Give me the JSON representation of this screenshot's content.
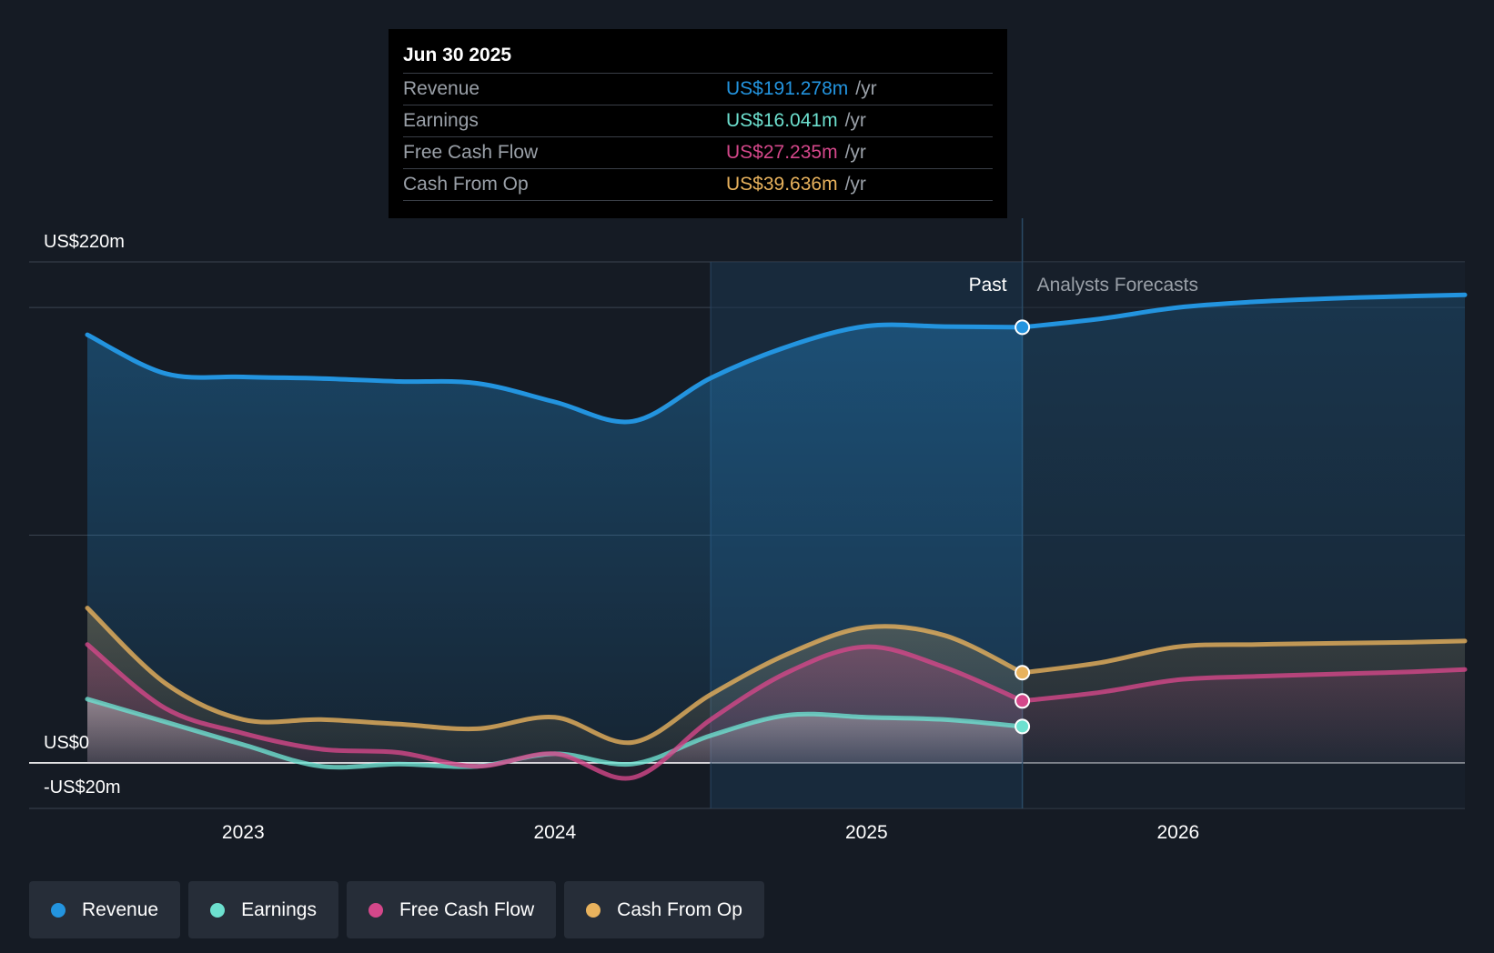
{
  "colors": {
    "revenue": "#2394df",
    "earnings": "#6de0cf",
    "fcf": "#d4478a",
    "cfo": "#e8b25d",
    "past_region": "#1c3650"
  },
  "tooltip": {
    "date": "Jun 30 2025",
    "rows": [
      {
        "name": "Revenue",
        "value": "US$191.278m",
        "unit": "/yr",
        "color": "#2394df"
      },
      {
        "name": "Earnings",
        "value": "US$16.041m",
        "unit": "/yr",
        "color": "#6de0cf"
      },
      {
        "name": "Free Cash Flow",
        "value": "US$27.235m",
        "unit": "/yr",
        "color": "#d4478a"
      },
      {
        "name": "Cash From Op",
        "value": "US$39.636m",
        "unit": "/yr",
        "color": "#e8b25d"
      }
    ]
  },
  "chart_data": {
    "type": "area",
    "ylabel_top": "US$220m",
    "ylabel_zero": "US$0",
    "ylabel_bottom": "-US$20m",
    "ylim": [
      -20,
      220
    ],
    "xlim": [
      2022.5,
      2026.92
    ],
    "x_ticks": [
      {
        "value": 2023,
        "label": "2023"
      },
      {
        "value": 2024,
        "label": "2024"
      },
      {
        "value": 2025,
        "label": "2025"
      },
      {
        "value": 2026,
        "label": "2026"
      }
    ],
    "past_label": "Past",
    "forecast_label": "Analysts Forecasts",
    "past_region_start": 2024.5,
    "current_x": 2025.5,
    "series": [
      {
        "name": "Revenue",
        "key": "revenue",
        "past": [
          [
            2022.5,
            188
          ],
          [
            2022.75,
            171
          ],
          [
            2023,
            169.5
          ],
          [
            2023.25,
            168.8
          ],
          [
            2023.5,
            167.5
          ],
          [
            2023.75,
            166.7
          ],
          [
            2024,
            158.5
          ],
          [
            2024.25,
            150
          ],
          [
            2024.5,
            169
          ],
          [
            2024.75,
            183
          ],
          [
            2025,
            191.8
          ],
          [
            2025.25,
            191.6
          ],
          [
            2025.5,
            191.3
          ]
        ],
        "forecast": [
          [
            2025.5,
            191.3
          ],
          [
            2025.75,
            195
          ],
          [
            2026,
            200
          ],
          [
            2026.25,
            202.5
          ],
          [
            2026.5,
            204
          ],
          [
            2026.75,
            205
          ],
          [
            2026.92,
            205.5
          ]
        ]
      },
      {
        "name": "Earnings",
        "key": "earnings",
        "past": [
          [
            2022.5,
            28
          ],
          [
            2022.75,
            18
          ],
          [
            2023,
            8
          ],
          [
            2023.25,
            -1.5
          ],
          [
            2023.5,
            -0.5
          ],
          [
            2023.75,
            -1.5
          ],
          [
            2024,
            4
          ],
          [
            2024.25,
            -0.5
          ],
          [
            2024.5,
            12
          ],
          [
            2024.75,
            21
          ],
          [
            2025,
            20
          ],
          [
            2025.25,
            19
          ],
          [
            2025.5,
            16
          ]
        ],
        "forecast": []
      },
      {
        "name": "Free Cash Flow",
        "key": "fcf",
        "past": [
          [
            2022.5,
            52
          ],
          [
            2022.75,
            24
          ],
          [
            2023,
            13
          ],
          [
            2023.25,
            6
          ],
          [
            2023.5,
            4.5
          ],
          [
            2023.75,
            -1.5
          ],
          [
            2024,
            4
          ],
          [
            2024.25,
            -6.5
          ],
          [
            2024.5,
            19
          ],
          [
            2024.75,
            40
          ],
          [
            2025,
            51
          ],
          [
            2025.25,
            42
          ],
          [
            2025.5,
            27.2
          ]
        ],
        "forecast": [
          [
            2025.5,
            27.2
          ],
          [
            2025.75,
            31
          ],
          [
            2026,
            36.5
          ],
          [
            2026.25,
            38
          ],
          [
            2026.5,
            39
          ],
          [
            2026.75,
            40
          ],
          [
            2026.92,
            41
          ]
        ]
      },
      {
        "name": "Cash From Op",
        "key": "cfo",
        "past": [
          [
            2022.5,
            68
          ],
          [
            2022.75,
            35
          ],
          [
            2023,
            19
          ],
          [
            2023.25,
            19
          ],
          [
            2023.5,
            17
          ],
          [
            2023.75,
            15
          ],
          [
            2024,
            20
          ],
          [
            2024.25,
            9
          ],
          [
            2024.5,
            30
          ],
          [
            2024.75,
            48
          ],
          [
            2025,
            59.5
          ],
          [
            2025.25,
            56
          ],
          [
            2025.5,
            39.6
          ]
        ],
        "forecast": [
          [
            2025.5,
            39.6
          ],
          [
            2025.75,
            44
          ],
          [
            2026,
            51
          ],
          [
            2026.25,
            52
          ],
          [
            2026.5,
            52.5
          ],
          [
            2026.75,
            53
          ],
          [
            2026.92,
            53.5
          ]
        ]
      }
    ]
  },
  "legend": [
    {
      "label": "Revenue",
      "color": "#2394df"
    },
    {
      "label": "Earnings",
      "color": "#6de0cf"
    },
    {
      "label": "Free Cash Flow",
      "color": "#d4478a"
    },
    {
      "label": "Cash From Op",
      "color": "#e8b25d"
    }
  ]
}
